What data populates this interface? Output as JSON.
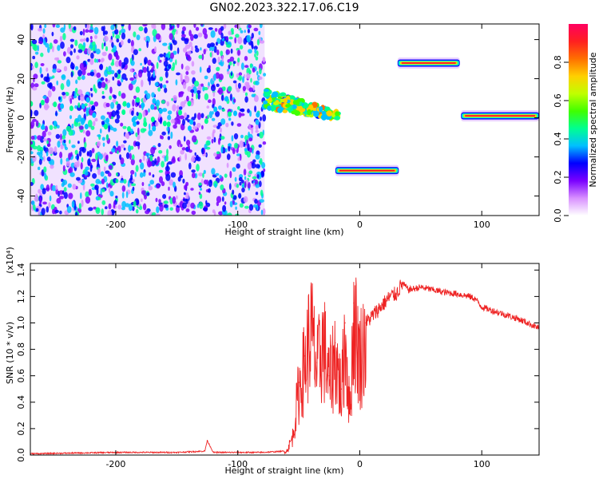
{
  "title": "GN02.2023.322.17.06.C19",
  "chart_data": [
    {
      "type": "heatmap",
      "xlabel": "Height of straight line (km)",
      "ylabel": "Frequency (Hz)",
      "xlim": [
        -270,
        147
      ],
      "ylim": [
        -50,
        48
      ],
      "xticks": [
        -200,
        -100,
        0,
        100
      ],
      "yticks": [
        -40,
        -20,
        0,
        20,
        40
      ],
      "xtick_labels": [
        "-200",
        "-100",
        "0",
        "100"
      ],
      "ytick_labels": [
        "-40",
        "-20",
        "0",
        "20",
        "40"
      ],
      "colorbar": {
        "label": "Normalized spectral amplitude",
        "range": [
          0,
          1
        ],
        "ticks": [
          0.0,
          0.2,
          0.4,
          0.6,
          0.8
        ],
        "tick_labels": [
          "0.0",
          "0.2",
          "0.4",
          "0.6",
          "0.8"
        ],
        "colors": [
          "#ffffff",
          "#d890ff",
          "#7a00ff",
          "#0000ff",
          "#00c0ff",
          "#00ff90",
          "#40ff00",
          "#c0ff00",
          "#ffd000",
          "#ff7000",
          "#ff2020",
          "#ff0060"
        ]
      },
      "regions": [
        {
          "name": "noise",
          "x": [
            -270,
            -78
          ],
          "y": [
            -50,
            48
          ],
          "level": 0.2
        },
        {
          "name": "transition",
          "x": [
            -78,
            -18
          ],
          "y": [
            -8,
            14
          ],
          "level": 0.5
        },
        {
          "name": "line-1",
          "x": [
            -20,
            32
          ],
          "y": [
            -27,
            -27
          ],
          "level": 0.9
        },
        {
          "name": "line-2",
          "x": [
            31,
            82
          ],
          "y": [
            28,
            28
          ],
          "level": 0.9
        },
        {
          "name": "line-3",
          "x": [
            83,
            147
          ],
          "y": [
            1,
            1
          ],
          "level": 0.9
        }
      ]
    },
    {
      "type": "line",
      "xlabel": "Height of straight line (km)",
      "ylabel": "SNR (10 * v/v)",
      "y_multiplier": "(x10⁴)",
      "xlim": [
        -270,
        147
      ],
      "ylim": [
        0,
        1.45
      ],
      "xticks": [
        -200,
        -100,
        0,
        100
      ],
      "yticks": [
        0.0,
        0.2,
        0.4,
        0.6,
        0.8,
        1.0,
        1.2,
        1.4
      ],
      "xtick_labels": [
        "-200",
        "-100",
        "0",
        "100"
      ],
      "ytick_labels": [
        "0.0",
        "0.2",
        "0.4",
        "0.6",
        "0.8",
        "1.0",
        "1.2",
        "1.4"
      ],
      "series": [
        {
          "color": "#ee2222",
          "x": [
            -270,
            -200,
            -150,
            -127,
            -125,
            -120,
            -80,
            -60,
            -55,
            -50,
            -45,
            -40,
            -35,
            -30,
            -25,
            -20,
            -15,
            -12,
            -8,
            -5,
            0,
            5,
            10,
            15,
            20,
            25,
            30,
            35,
            40,
            50,
            60,
            70,
            80,
            90,
            95,
            100,
            110,
            120,
            130,
            140,
            147
          ],
          "y": [
            0.01,
            0.02,
            0.02,
            0.03,
            0.11,
            0.02,
            0.02,
            0.03,
            0.15,
            0.55,
            0.75,
            1.05,
            0.7,
            0.95,
            0.6,
            0.85,
            0.5,
            1.0,
            0.35,
            1.15,
            0.8,
            1.0,
            1.05,
            1.1,
            1.15,
            1.2,
            1.22,
            1.3,
            1.25,
            1.27,
            1.25,
            1.23,
            1.22,
            1.2,
            1.18,
            1.12,
            1.09,
            1.06,
            1.03,
            0.99,
            0.96
          ]
        }
      ]
    }
  ]
}
